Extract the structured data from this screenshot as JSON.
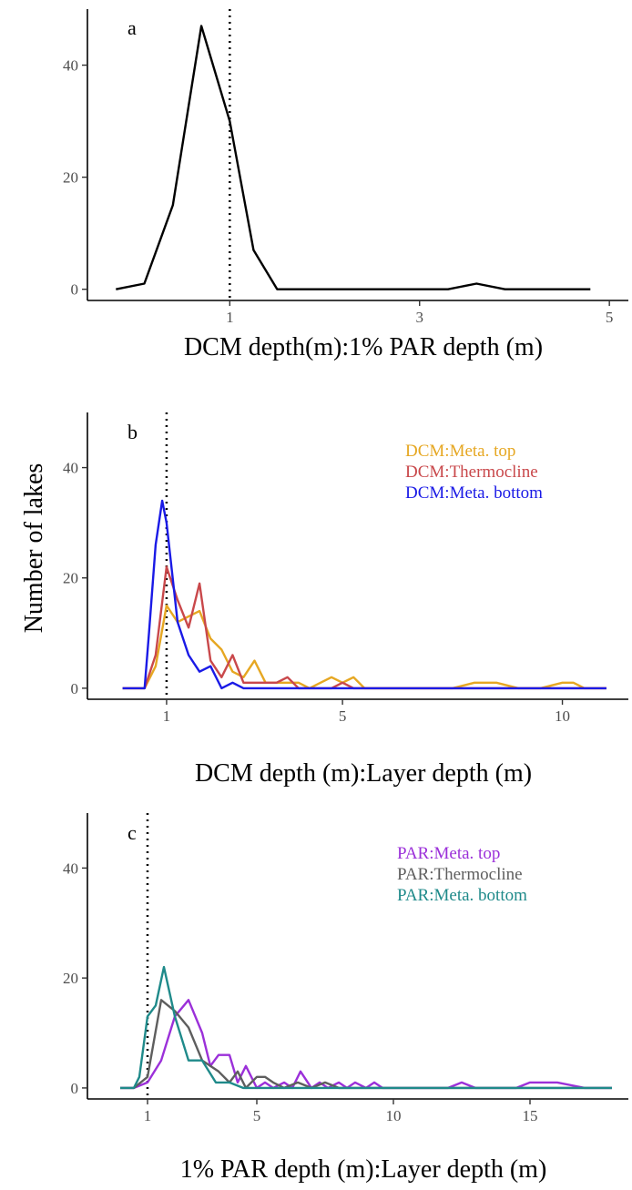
{
  "y_axis_title": "Number of lakes",
  "chart_data": [
    {
      "type": "line",
      "panel_label": "a",
      "xlabel": "DCM depth(m):1% PAR depth (m)",
      "xlim": [
        -0.5,
        5.2
      ],
      "ylim": [
        -2,
        50
      ],
      "xticks": [
        1,
        3,
        5
      ],
      "yticks": [
        0,
        20,
        40
      ],
      "reference_line_x": 1,
      "series": [
        {
          "color": "#000000",
          "x": [
            -0.2,
            0.1,
            0.4,
            0.7,
            1.0,
            1.25,
            1.5,
            1.8,
            2.1,
            2.4,
            2.7,
            3.0,
            3.3,
            3.6,
            3.9,
            4.2,
            4.5,
            4.8
          ],
          "y": [
            0,
            1,
            15,
            47,
            30,
            7,
            0,
            0,
            0,
            0,
            0,
            0,
            0,
            1,
            0,
            0,
            0,
            0
          ]
        }
      ]
    },
    {
      "type": "line",
      "panel_label": "b",
      "xlabel": "DCM depth (m):Layer depth (m)",
      "xlim": [
        -0.8,
        11.5
      ],
      "ylim": [
        -2,
        50
      ],
      "xticks": [
        1,
        5,
        10
      ],
      "yticks": [
        0,
        20,
        40
      ],
      "reference_line_x": 1,
      "legend_position": "top-right",
      "series": [
        {
          "name": "DCM:Meta. top",
          "color": "#E6A722",
          "x": [
            0,
            0.25,
            0.5,
            0.75,
            1.0,
            1.25,
            1.5,
            1.75,
            2.0,
            2.25,
            2.5,
            2.75,
            3.0,
            3.25,
            3.5,
            3.75,
            4.0,
            4.25,
            4.5,
            4.75,
            5.0,
            5.25,
            5.5,
            5.75,
            6.0,
            6.5,
            7.0,
            7.5,
            8.0,
            8.5,
            9.0,
            9.5,
            10.0,
            10.25,
            10.5,
            11.0
          ],
          "y": [
            0,
            0,
            0,
            4,
            15,
            12,
            13,
            14,
            9,
            7,
            3,
            2,
            5,
            1,
            1,
            1,
            1,
            0,
            1,
            2,
            1,
            2,
            0,
            0,
            0,
            0,
            0,
            0,
            1,
            1,
            0,
            0,
            1,
            1,
            0,
            0
          ]
        },
        {
          "name": "DCM:Thermocline",
          "color": "#C9484B",
          "x": [
            0,
            0.25,
            0.5,
            0.75,
            1.0,
            1.25,
            1.5,
            1.75,
            2.0,
            2.25,
            2.5,
            2.75,
            3.0,
            3.25,
            3.5,
            3.75,
            4.0,
            4.25,
            4.5,
            4.75,
            5.0,
            5.25,
            5.5,
            6.0,
            7.0,
            8.0,
            9.0,
            9.5,
            10.0,
            10.25,
            11.0
          ],
          "y": [
            0,
            0,
            0,
            6,
            22,
            16,
            11,
            19,
            5,
            2,
            6,
            1,
            1,
            1,
            1,
            2,
            0,
            0,
            0,
            0,
            1,
            0,
            0,
            0,
            0,
            0,
            0,
            0,
            0,
            0,
            0
          ]
        },
        {
          "name": "DCM:Meta. bottom",
          "color": "#1A1AE6",
          "x": [
            0,
            0.25,
            0.5,
            0.6,
            0.75,
            0.9,
            1.0,
            1.25,
            1.5,
            1.75,
            2.0,
            2.25,
            2.5,
            2.75,
            3.0,
            3.5,
            4.0,
            5.0,
            6.0,
            8.0,
            10.0,
            11.0
          ],
          "y": [
            0,
            0,
            0,
            10,
            26,
            34,
            30,
            12,
            6,
            3,
            4,
            0,
            1,
            0,
            0,
            0,
            0,
            0,
            0,
            0,
            0,
            0
          ]
        }
      ]
    },
    {
      "type": "line",
      "panel_label": "c",
      "xlabel": "1% PAR depth (m):Layer depth (m)",
      "xlim": [
        -1.2,
        18.6
      ],
      "ylim": [
        -2,
        50
      ],
      "xticks": [
        1,
        5,
        10,
        15
      ],
      "yticks": [
        0,
        20,
        40
      ],
      "reference_line_x": 1,
      "legend_position": "top-right",
      "series": [
        {
          "name": "PAR:Meta. top",
          "color": "#9B30D9",
          "x": [
            0,
            0.5,
            1.0,
            1.5,
            2.0,
            2.5,
            3.0,
            3.3,
            3.6,
            4.0,
            4.3,
            4.6,
            5.0,
            5.3,
            5.6,
            6.0,
            6.3,
            6.6,
            7.0,
            7.3,
            7.6,
            8.0,
            8.3,
            8.6,
            9.0,
            9.3,
            9.6,
            10.0,
            11.0,
            12.0,
            12.5,
            13.0,
            14.0,
            14.5,
            15.0,
            15.5,
            16.0,
            17.0,
            18.0
          ],
          "y": [
            0,
            0,
            1,
            5,
            13,
            16,
            10,
            4,
            6,
            6,
            1,
            4,
            0,
            1,
            0,
            1,
            0,
            3,
            0,
            1,
            0,
            1,
            0,
            1,
            0,
            1,
            0,
            0,
            0,
            0,
            1,
            0,
            0,
            0,
            1,
            1,
            1,
            0,
            0
          ]
        },
        {
          "name": "PAR:Thermocline",
          "color": "#5E5E5E",
          "x": [
            0,
            0.5,
            1.0,
            1.5,
            2.0,
            2.5,
            3.0,
            3.3,
            3.6,
            4.0,
            4.3,
            4.6,
            5.0,
            5.3,
            5.6,
            6.0,
            6.5,
            7.0,
            7.5,
            8.0,
            9.0,
            10.0,
            12.0,
            15.0,
            18.0
          ],
          "y": [
            0,
            0,
            2,
            16,
            14,
            11,
            5,
            4,
            3,
            1,
            3,
            0,
            2,
            2,
            1,
            0,
            1,
            0,
            1,
            0,
            0,
            0,
            0,
            0,
            0
          ]
        },
        {
          "name": "PAR:Meta. bottom",
          "color": "#1F8A8A",
          "x": [
            0,
            0.5,
            0.7,
            1.0,
            1.3,
            1.6,
            2.0,
            2.5,
            3.0,
            3.5,
            4.0,
            4.5,
            5.0,
            6.0,
            8.0,
            10.0,
            14.0,
            18.0
          ],
          "y": [
            0,
            0,
            2,
            13,
            15,
            22,
            13,
            5,
            5,
            1,
            1,
            0,
            0,
            0,
            0,
            0,
            0,
            0
          ]
        }
      ]
    }
  ]
}
